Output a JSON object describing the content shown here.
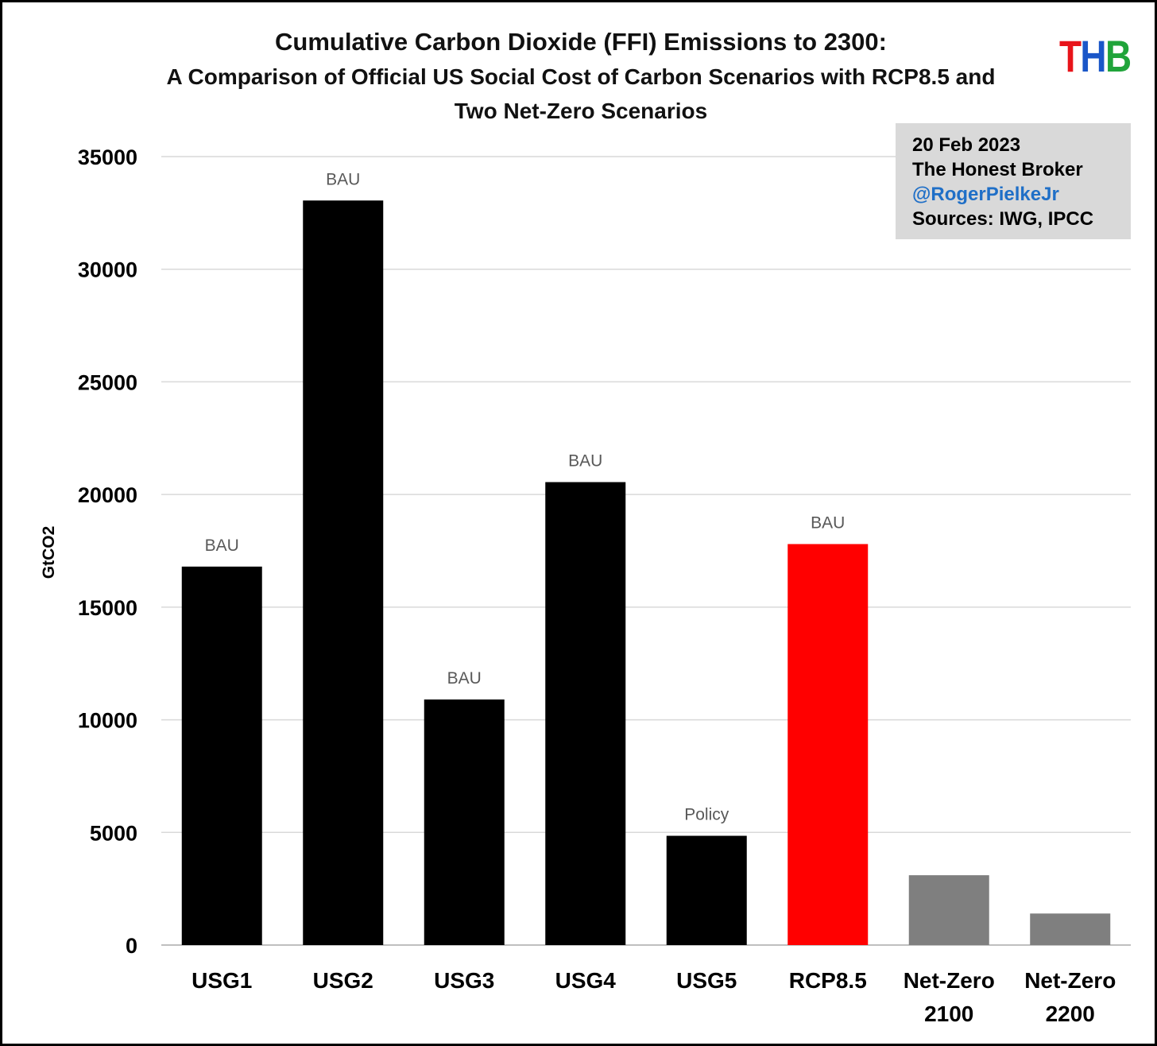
{
  "header": {
    "title_line1": "Cumulative Carbon Dioxide (FFI) Emissions to 2300:",
    "title_line2": "A Comparison of Official US Social Cost of Carbon Scenarios with RCP8.5 and",
    "title_line3": "Two Net-Zero Scenarios"
  },
  "logo": {
    "t": "T",
    "h": "H",
    "b": "B",
    "t_color": "#e8141a",
    "h_color": "#1a56c8",
    "b_color": "#20a43a"
  },
  "infobox": {
    "date": "20 Feb 2023",
    "publication": "The Honest Broker",
    "handle": "@RogerPielkeJr",
    "sources": "Sources: IWG, IPCC"
  },
  "chart_data": {
    "type": "bar",
    "title": "Cumulative Carbon Dioxide (FFI) Emissions to 2300: A Comparison of Official US Social Cost of Carbon Scenarios with RCP8.5 and Two Net-Zero Scenarios",
    "ylabel": "GtCO2",
    "xlabel": "",
    "ylim": [
      0,
      35000
    ],
    "yticks": [
      "0",
      "5000",
      "10000",
      "15000",
      "20000",
      "25000",
      "30000",
      "35000"
    ],
    "grid": true,
    "categories": [
      [
        "USG1"
      ],
      [
        "USG2"
      ],
      [
        "USG3"
      ],
      [
        "USG4"
      ],
      [
        "USG5"
      ],
      [
        "RCP8.5"
      ],
      [
        "Net-Zero",
        "2100"
      ],
      [
        "Net-Zero",
        "2200"
      ]
    ],
    "values": [
      16800,
      33050,
      10900,
      20550,
      4850,
      17800,
      3100,
      1400
    ],
    "annotations": [
      "BAU",
      "BAU",
      "BAU",
      "BAU",
      "Policy",
      "BAU",
      "",
      ""
    ],
    "colors": [
      "#000000",
      "#000000",
      "#000000",
      "#000000",
      "#000000",
      "#ff0000",
      "#7f7f7f",
      "#7f7f7f"
    ]
  }
}
